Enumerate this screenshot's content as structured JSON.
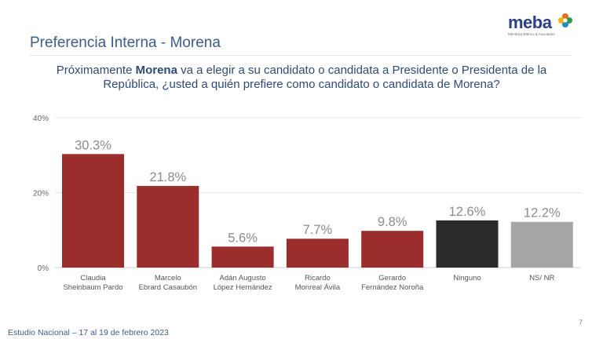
{
  "header": {
    "title": "Preferencia Interna - Morena",
    "logo_text": "meba",
    "logo_subtext": "Mendoza Blanco & Asociados"
  },
  "question": {
    "before": "Próximamente ",
    "emphasis": "Morena",
    "after": " va a elegir a su candidato o candidata a Presidente o Presidenta de la República, ¿usted a quién prefiere como candidato o candidata de Morena?"
  },
  "chart_data": {
    "type": "bar",
    "categories": [
      [
        "Claudia",
        "Sheinbaum Pardo"
      ],
      [
        "Marcelo",
        "Ebrard Casaubón"
      ],
      [
        "Adán Augusto",
        "López Hernández"
      ],
      [
        "Ricardo",
        "Monreal Ávila"
      ],
      [
        "Gerardo",
        "Fernández Noroña"
      ],
      [
        "Ninguno"
      ],
      [
        "NS/ NR"
      ]
    ],
    "values": [
      30.3,
      21.8,
      5.6,
      7.7,
      9.8,
      12.6,
      12.2
    ],
    "value_labels": [
      "30.3%",
      "21.8%",
      "5.6%",
      "7.7%",
      "9.8%",
      "12.6%",
      "12.2%"
    ],
    "colors": [
      "#9b2d2d",
      "#9b2d2d",
      "#9b2d2d",
      "#9b2d2d",
      "#9b2d2d",
      "#2b2b2b",
      "#a6a6a6"
    ],
    "ylim": [
      0,
      40
    ],
    "yticks": [
      0,
      20,
      40
    ],
    "ytick_labels": [
      "0%",
      "20%",
      "40%"
    ],
    "grid": true
  },
  "footer": {
    "study": "Estudio Nacional – 17 al 19 de febrero 2023",
    "page": "7"
  }
}
